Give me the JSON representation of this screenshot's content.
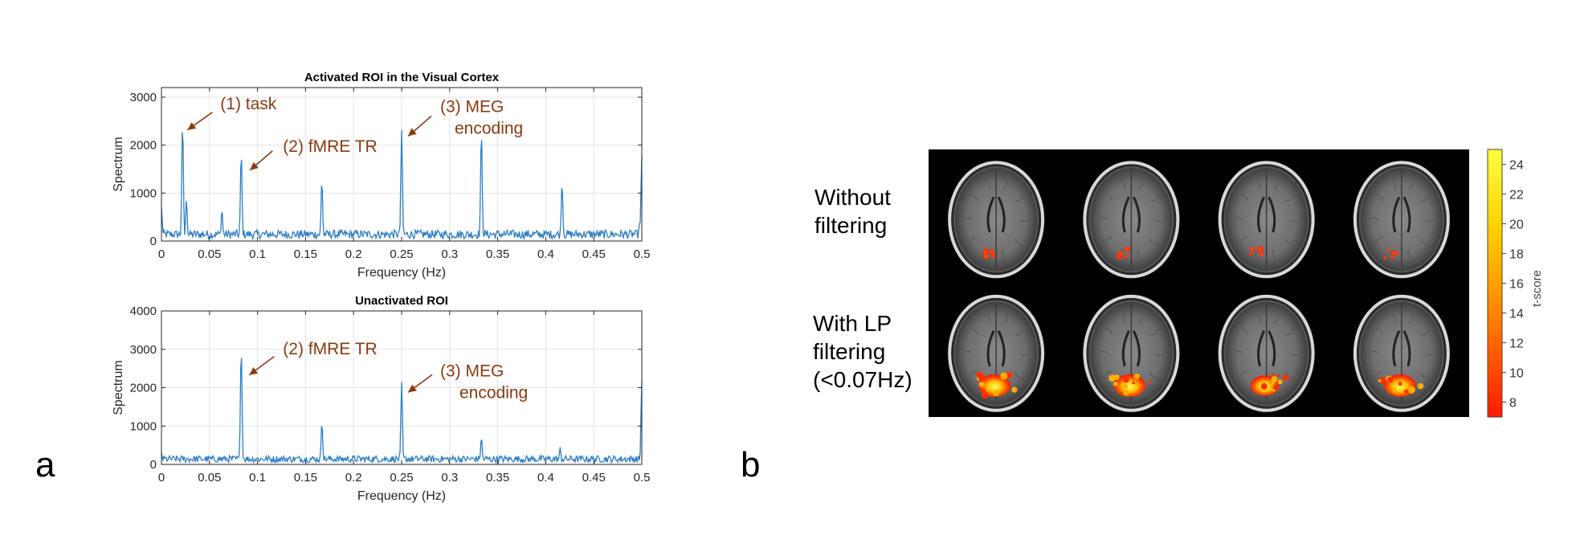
{
  "panels": {
    "a_label": "a",
    "b_label": "b"
  },
  "annotation_color": "#8B3A0E",
  "line_color": "#2E7EC4",
  "chart_data": [
    {
      "type": "line",
      "title": "Activated ROI in the Visual Cortex",
      "xlabel": "Frequency (Hz)",
      "ylabel": "Spectrum",
      "xlim": [
        0,
        0.5
      ],
      "ylim": [
        0,
        3200
      ],
      "xticks": [
        0,
        0.05,
        0.1,
        0.15,
        0.2,
        0.25,
        0.3,
        0.35,
        0.4,
        0.45,
        0.5
      ],
      "xtick_labels": [
        "0",
        "0.05",
        "0.1",
        "0.15",
        "0.2",
        "0.25",
        "0.3",
        "0.35",
        "0.4",
        "0.45",
        "0.5"
      ],
      "yticks": [
        0,
        1000,
        2000,
        3000
      ],
      "ytick_labels": [
        "0",
        "1000",
        "2000",
        "3000"
      ],
      "grid": true,
      "peaks": [
        {
          "x": 0.0,
          "y": 700
        },
        {
          "x": 0.022,
          "y": 2450
        },
        {
          "x": 0.026,
          "y": 850
        },
        {
          "x": 0.063,
          "y": 650
        },
        {
          "x": 0.083,
          "y": 1830
        },
        {
          "x": 0.167,
          "y": 1250
        },
        {
          "x": 0.25,
          "y": 2320
        },
        {
          "x": 0.333,
          "y": 2270
        },
        {
          "x": 0.417,
          "y": 1190
        },
        {
          "x": 0.498,
          "y": 420
        },
        {
          "x": 0.5,
          "y": 1780
        }
      ],
      "baseline": 200,
      "annotations": [
        {
          "text": "(1) task",
          "x": 0.022,
          "y": 2450
        },
        {
          "text": "(2) fMRE TR",
          "x": 0.083,
          "y": 1830
        },
        {
          "text": "(3) MEG",
          "text2": "encoding",
          "x": 0.25,
          "y": 2320
        }
      ]
    },
    {
      "type": "line",
      "title": "Unactivated ROI",
      "xlabel": "Frequency (Hz)",
      "ylabel": "Spectrum",
      "xlim": [
        0,
        0.5
      ],
      "ylim": [
        0,
        4000
      ],
      "xticks": [
        0,
        0.05,
        0.1,
        0.15,
        0.2,
        0.25,
        0.3,
        0.35,
        0.4,
        0.45,
        0.5
      ],
      "xtick_labels": [
        "0",
        "0.05",
        "0.1",
        "0.15",
        "0.2",
        "0.25",
        "0.3",
        "0.35",
        "0.4",
        "0.45",
        "0.5"
      ],
      "yticks": [
        0,
        1000,
        2000,
        3000,
        4000
      ],
      "ytick_labels": [
        "0",
        "1000",
        "2000",
        "3000",
        "4000"
      ],
      "grid": true,
      "peaks": [
        {
          "x": 0.0,
          "y": 300
        },
        {
          "x": 0.083,
          "y": 3000
        },
        {
          "x": 0.167,
          "y": 1080
        },
        {
          "x": 0.25,
          "y": 2150
        },
        {
          "x": 0.333,
          "y": 700
        },
        {
          "x": 0.415,
          "y": 450
        },
        {
          "x": 0.5,
          "y": 2180
        }
      ],
      "baseline": 200,
      "annotations": [
        {
          "text": "(2) fMRE TR",
          "x": 0.083,
          "y": 3000
        },
        {
          "text": "(3) MEG",
          "text2": "encoding",
          "x": 0.25,
          "y": 2150
        }
      ]
    },
    {
      "type": "heatmap",
      "rows": [
        {
          "label_lines": [
            "Without",
            "filtering"
          ],
          "blob_sizes": [
            0.5,
            0.45,
            0.45,
            0.2
          ]
        },
        {
          "label_lines": [
            "With LP",
            "filtering",
            "(<0.07Hz)"
          ],
          "blob_sizes": [
            1.0,
            1.0,
            0.9,
            1.0
          ]
        }
      ],
      "columns": 4,
      "colorbar": {
        "label": "t-score",
        "min": 7,
        "max": 25,
        "ticks": [
          8,
          10,
          12,
          14,
          16,
          18,
          20,
          22,
          24
        ],
        "colors": [
          "#FF1A00",
          "#FF7A00",
          "#FFD000",
          "#FFFF40"
        ]
      }
    }
  ]
}
